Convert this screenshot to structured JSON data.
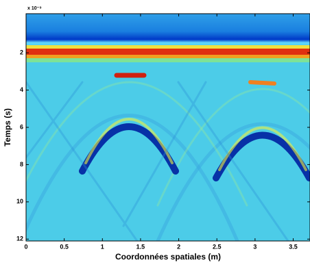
{
  "chart_data": {
    "type": "image",
    "xlabel": "Coordonnées spatiales (m)",
    "ylabel": "Temps (s)",
    "y_exponent": "x 10⁻⁹",
    "xlim": [
      0,
      3.72
    ],
    "ylim": [
      -0.1,
      12.1
    ],
    "y_reversed": true,
    "xticks": [
      0,
      0.5,
      1,
      1.5,
      2,
      2.5,
      3,
      3.5
    ],
    "yticks": [
      2,
      4,
      6,
      8,
      10,
      12
    ]
  }
}
